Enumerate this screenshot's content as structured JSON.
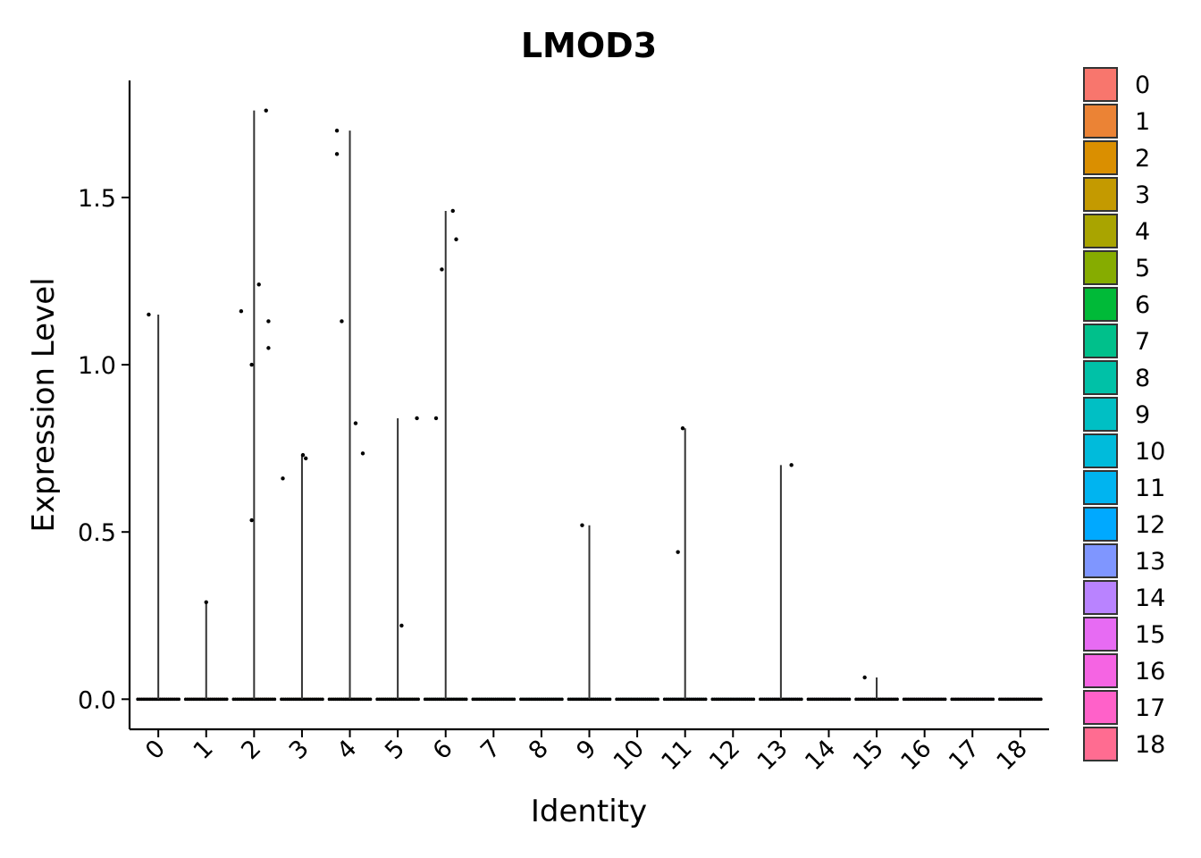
{
  "chart_data": {
    "type": "violin",
    "title": "LMOD3",
    "xlabel": "Identity",
    "ylabel": "Expression Level",
    "ylim": [
      -0.09,
      1.85
    ],
    "yticks": [
      0.0,
      0.5,
      1.0,
      1.5
    ],
    "ytick_labels": [
      "0.0",
      "0.5",
      "1.0",
      "1.5"
    ],
    "categories": [
      "0",
      "1",
      "2",
      "3",
      "4",
      "5",
      "6",
      "7",
      "8",
      "9",
      "10",
      "11",
      "12",
      "13",
      "14",
      "15",
      "16",
      "17",
      "18"
    ],
    "colors": [
      "#F8766D",
      "#EB8335",
      "#DA8F00",
      "#C49A00",
      "#A9A400",
      "#86AC00",
      "#00BA38",
      "#00C08B",
      "#00C1A7",
      "#00BFC4",
      "#00BBDB",
      "#00B4F0",
      "#00A9FF",
      "#7F96FF",
      "#B983FF",
      "#E76BF3",
      "#F564E3",
      "#FF61C9",
      "#FF6C91"
    ],
    "max_expression": [
      1.15,
      0.29,
      1.76,
      0.73,
      1.7,
      0.84,
      1.46,
      0,
      0,
      0.52,
      0,
      0.81,
      0,
      0.7,
      0,
      0.065,
      0,
      0,
      0
    ],
    "points": [
      {
        "x": 0,
        "offset": -0.2,
        "y": 1.15
      },
      {
        "x": 1,
        "offset": 0.0,
        "y": 0.29
      },
      {
        "x": 2,
        "offset": -0.27,
        "y": 1.16
      },
      {
        "x": 2,
        "offset": 0.1,
        "y": 1.24
      },
      {
        "x": 2,
        "offset": 0.3,
        "y": 1.13
      },
      {
        "x": 2,
        "offset": 0.3,
        "y": 1.05
      },
      {
        "x": 2,
        "offset": -0.05,
        "y": 1.0
      },
      {
        "x": 2,
        "offset": 0.6,
        "y": 0.66
      },
      {
        "x": 2,
        "offset": -0.05,
        "y": 0.535
      },
      {
        "x": 2,
        "offset": 0.25,
        "y": 1.76
      },
      {
        "x": 3,
        "offset": 0.08,
        "y": 0.72
      },
      {
        "x": 3,
        "offset": 0.02,
        "y": 0.73
      },
      {
        "x": 4,
        "offset": -0.27,
        "y": 1.7
      },
      {
        "x": 4,
        "offset": -0.27,
        "y": 1.63
      },
      {
        "x": 4,
        "offset": -0.17,
        "y": 1.13
      },
      {
        "x": 4,
        "offset": 0.12,
        "y": 0.825
      },
      {
        "x": 4,
        "offset": 0.27,
        "y": 0.735
      },
      {
        "x": 5,
        "offset": 0.4,
        "y": 0.84
      },
      {
        "x": 5,
        "offset": 0.08,
        "y": 0.22
      },
      {
        "x": 6,
        "offset": -0.2,
        "y": 0.84
      },
      {
        "x": 6,
        "offset": -0.08,
        "y": 1.285
      },
      {
        "x": 6,
        "offset": 0.15,
        "y": 1.46
      },
      {
        "x": 6,
        "offset": 0.22,
        "y": 1.375
      },
      {
        "x": 9,
        "offset": -0.15,
        "y": 0.52
      },
      {
        "x": 11,
        "offset": -0.15,
        "y": 0.44
      },
      {
        "x": 11,
        "offset": -0.05,
        "y": 0.81
      },
      {
        "x": 13,
        "offset": 0.22,
        "y": 0.7
      },
      {
        "x": 15,
        "offset": -0.25,
        "y": 0.065
      }
    ],
    "legend": {
      "placement": "right",
      "entries": [
        "0",
        "1",
        "2",
        "3",
        "4",
        "5",
        "6",
        "7",
        "8",
        "9",
        "10",
        "11",
        "12",
        "13",
        "14",
        "15",
        "16",
        "17",
        "18"
      ]
    }
  }
}
